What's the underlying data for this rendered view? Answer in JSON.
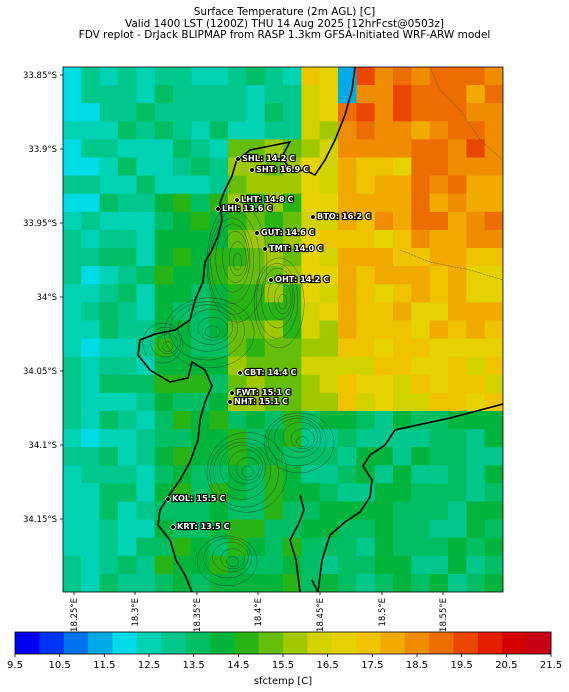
{
  "title_lines": [
    "Surface Temperature (2m AGL) [C]",
    "Valid 1400 LST (1200Z) THU 14 Aug 2025 [12hrFcst@0503z]",
    "FDV replot - DrJack BLIPMAP from RASP 1.3km GFSA-Initiated WRF-ARW model"
  ],
  "lat_labels": [
    "33.85°S",
    "33.9°S",
    "33.95°S",
    "34°S",
    "34.05°S",
    "34.1°S",
    "34.15°S"
  ],
  "lon_labels": [
    "18.25°E",
    "18.3°E",
    "18.35°E",
    "18.4°E",
    "18.45°E",
    "18.5°E",
    "18.55°E"
  ],
  "stations": [
    {
      "label": "SHL: 14.2 C"
    },
    {
      "label": "SHT: 16.9 C"
    },
    {
      "label": "LHT: 14.8 C"
    },
    {
      "label": "LHI: 13.6 C"
    },
    {
      "label": "BTO: 16.2 C"
    },
    {
      "label": "GUT: 14.6 C"
    },
    {
      "label": "TMT: 14.0 C"
    },
    {
      "label": "OHT: 14.2 C"
    },
    {
      "label": "CBT: 14.4 C"
    },
    {
      "label": "FWT: 15.1 C"
    },
    {
      "label": "NHT: 15.1 C"
    },
    {
      "label": "KOL: 15.5 C"
    },
    {
      "label": "KRT: 13.5 C"
    }
  ],
  "colorbar": {
    "label": "sfctemp [C]",
    "ticks": [
      "9.5",
      "10.5",
      "11.5",
      "12.5",
      "13.5",
      "14.5",
      "15.5",
      "16.5",
      "17.5",
      "18.5",
      "19.5",
      "20.5",
      "21.5"
    ],
    "colors": [
      "#0000f0",
      "#0032f5",
      "#0073f0",
      "#00aae6",
      "#00dce6",
      "#00d2b4",
      "#00c88c",
      "#00be64",
      "#00b43c",
      "#28b414",
      "#64be0a",
      "#a0c800",
      "#d2d200",
      "#e6d200",
      "#f0c300",
      "#f0aa00",
      "#f08c00",
      "#ed6e00",
      "#eb4600",
      "#e61e00",
      "#d20000",
      "#c80014"
    ]
  },
  "map": {
    "coast_line_color": "#000000",
    "terrain_contour_color": "#333333"
  }
}
